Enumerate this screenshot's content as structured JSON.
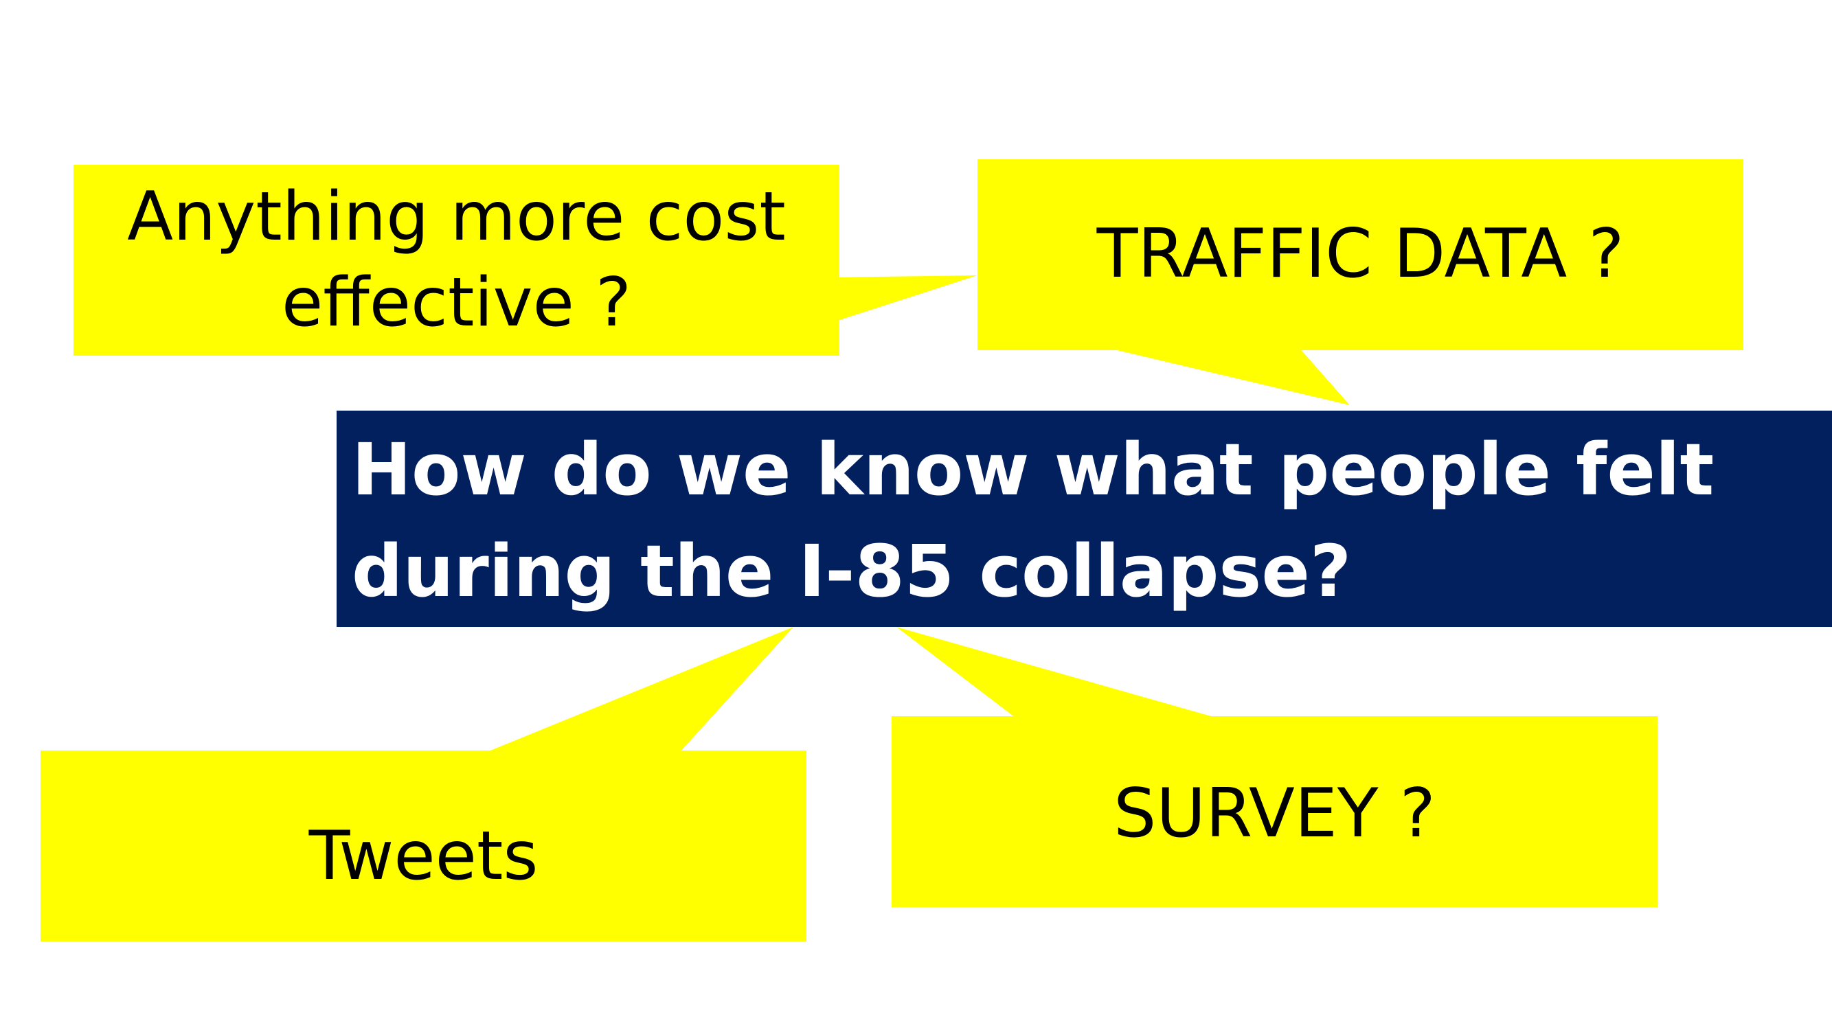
{
  "slide": {
    "background": "#ffffff",
    "callout_color": "#ffff00",
    "question_color": "#03205e"
  },
  "question": {
    "text": "How do we know what people felt\nduring the I-85 collapse?"
  },
  "callouts": {
    "cost": "Anything more cost\neffective ?",
    "traffic": "TRAFFIC DATA ?",
    "tweets": "Tweets",
    "survey": "SURVEY ?"
  }
}
